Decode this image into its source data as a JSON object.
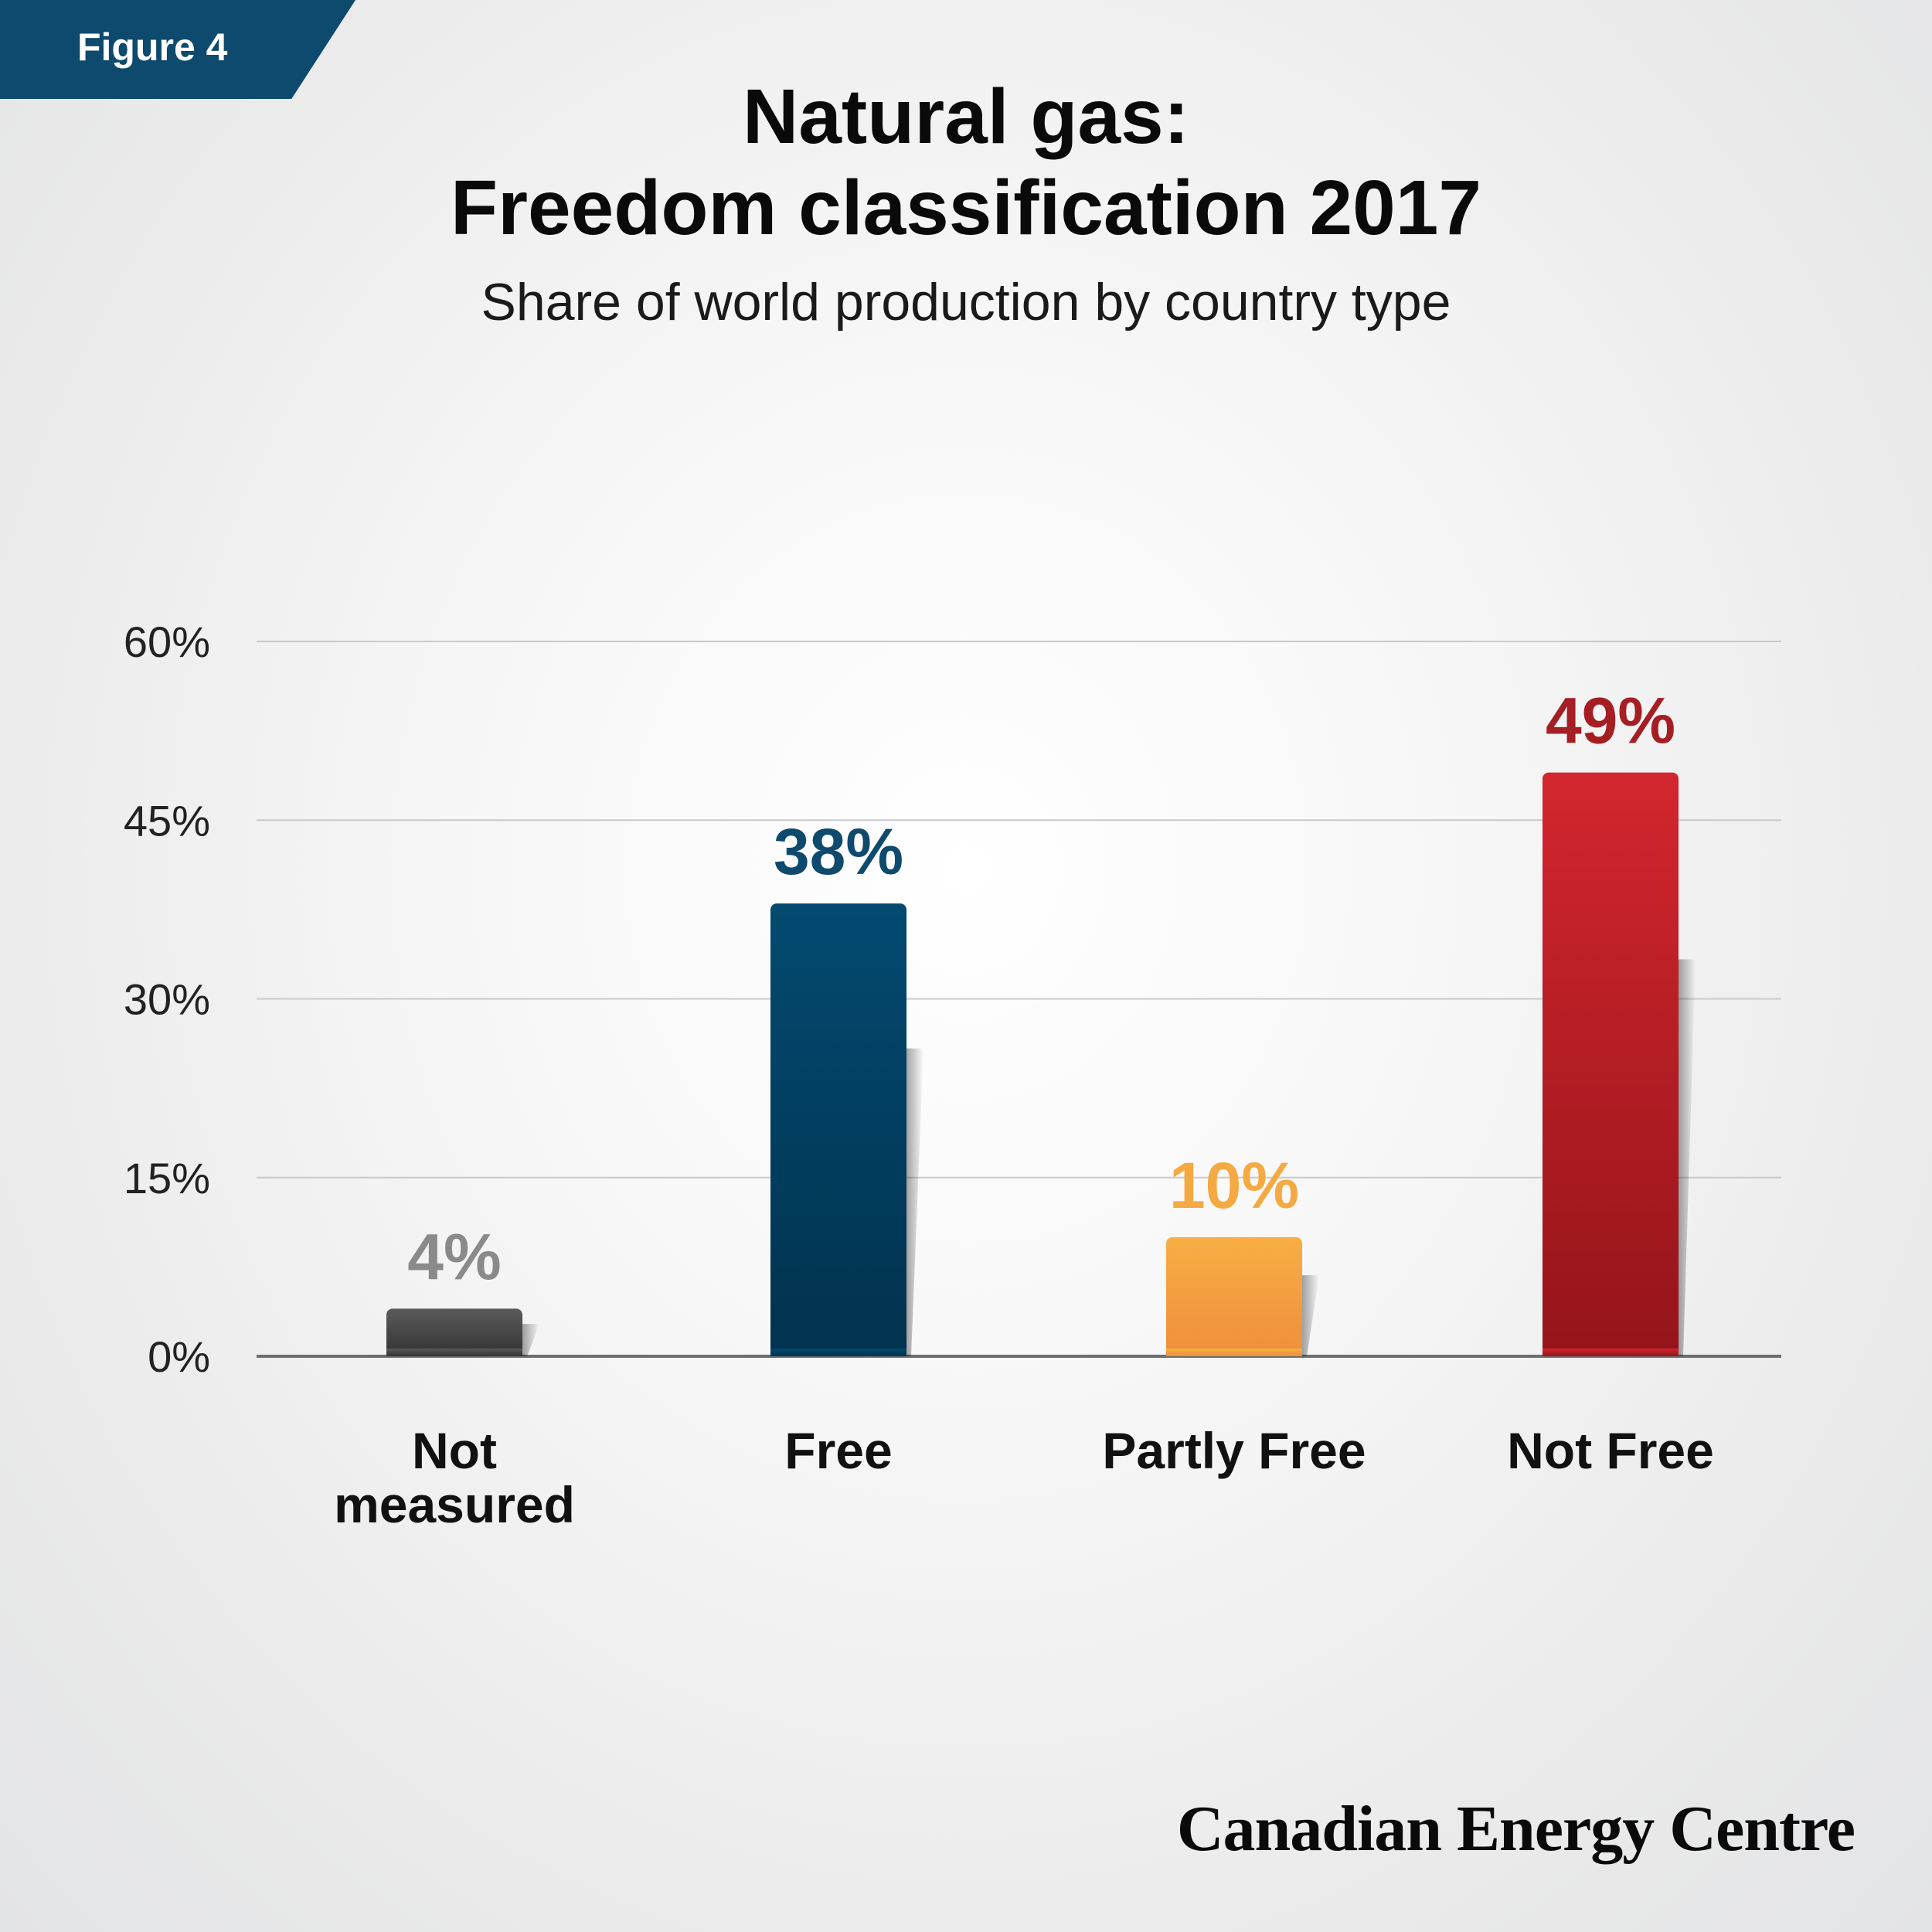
{
  "header": {
    "figure_label": "Figure 4",
    "title_line1": "Natural gas:",
    "title_line2": "Freedom classification 2017",
    "subtitle": "Share of world production by country type"
  },
  "footer": {
    "brand": "Canadian Energy Centre"
  },
  "colors": {
    "badge": "#0d4a6d",
    "not_measured": "#4a4a4a",
    "free": "#024a6f",
    "partly_free": "#f5a53f",
    "not_free": "#c8232b",
    "label_not_measured": "#8a8a8a",
    "label_free": "#0d4a6d",
    "label_partly_free": "#f4a942",
    "label_not_free": "#a51e23"
  },
  "chart_data": {
    "type": "bar",
    "title": "Natural gas: Freedom classification 2017",
    "subtitle": "Share of world production by country type",
    "categories": [
      "Not measured",
      "Free",
      "Partly Free",
      "Not Free"
    ],
    "category_lines": [
      [
        "Not",
        "measured"
      ],
      [
        "Free"
      ],
      [
        "Partly Free"
      ],
      [
        "Not Free"
      ]
    ],
    "values": [
      4,
      38,
      10,
      49
    ],
    "value_labels": [
      "4%",
      "38%",
      "10%",
      "49%"
    ],
    "ylim": [
      0,
      60
    ],
    "yticks": [
      0,
      15,
      30,
      45,
      60
    ],
    "ytick_labels": [
      "0%",
      "15%",
      "30%",
      "45%",
      "60%"
    ],
    "grid": true,
    "legend": "none"
  }
}
